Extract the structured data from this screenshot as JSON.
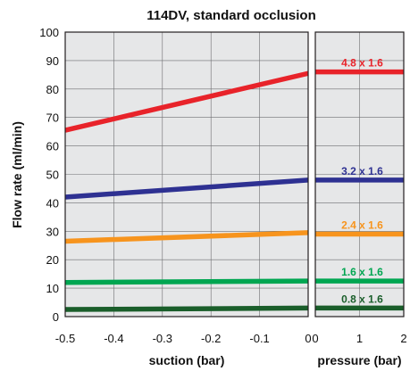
{
  "chart_data": {
    "type": "line",
    "title": "114DV, standard occlusion",
    "ylabel": "Flow rate (ml/min)",
    "ylim": [
      0,
      100
    ],
    "yticks": [
      "0",
      "10",
      "20",
      "30",
      "40",
      "50",
      "60",
      "70",
      "80",
      "90",
      "100"
    ],
    "grid": true,
    "panels": [
      {
        "xlabel": "suction (bar)",
        "xlim": [
          -0.5,
          0
        ],
        "xticks": [
          "-0.5",
          "-0.4",
          "-0.3",
          "-0.2",
          "-0.1",
          "0"
        ]
      },
      {
        "xlabel": "pressure (bar)",
        "xlim": [
          0,
          2
        ],
        "xticks": [
          "0",
          "1",
          "2"
        ]
      }
    ],
    "series": [
      {
        "name": "4.8 x 1.6",
        "color": "#e8232a",
        "suction": {
          "x": [
            -0.5,
            0
          ],
          "y": [
            65.5,
            85.5
          ]
        },
        "pressure": {
          "x": [
            0,
            2
          ],
          "y": [
            86,
            86
          ]
        }
      },
      {
        "name": "3.2 x 1.6",
        "color": "#2e3192",
        "suction": {
          "x": [
            -0.5,
            0
          ],
          "y": [
            42,
            48
          ]
        },
        "pressure": {
          "x": [
            0,
            2
          ],
          "y": [
            48,
            48
          ]
        }
      },
      {
        "name": "2.4 x 1.6",
        "color": "#f7941d",
        "suction": {
          "x": [
            -0.5,
            0
          ],
          "y": [
            26.5,
            29.5
          ]
        },
        "pressure": {
          "x": [
            0,
            2
          ],
          "y": [
            29,
            29
          ]
        }
      },
      {
        "name": "1.6 x 1.6",
        "color": "#00a651",
        "suction": {
          "x": [
            -0.5,
            0
          ],
          "y": [
            12,
            12.5
          ]
        },
        "pressure": {
          "x": [
            0,
            2
          ],
          "y": [
            12.5,
            12.5
          ]
        }
      },
      {
        "name": "0.8 x 1.6",
        "color": "#1a5e2a",
        "suction": {
          "x": [
            -0.5,
            0
          ],
          "y": [
            2.5,
            3
          ]
        },
        "pressure": {
          "x": [
            0,
            2
          ],
          "y": [
            3,
            3
          ]
        }
      }
    ]
  }
}
